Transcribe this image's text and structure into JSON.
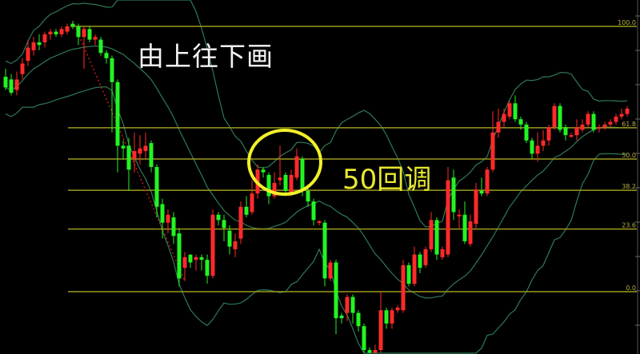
{
  "chart_data": {
    "type": "candlestick",
    "title": "",
    "xlabel": "",
    "ylabel": "",
    "value_units": "fibonacci retracement percent (0.0 = swing low level, 100.0 = swing high level)",
    "ylim": [
      -24,
      104
    ],
    "grid": false,
    "fib_levels": [
      {
        "label": "100.0",
        "value": 100.0
      },
      {
        "label": "61.8",
        "value": 61.8
      },
      {
        "label": "50.0",
        "value": 50.0
      },
      {
        "label": "38.2",
        "value": 38.2
      },
      {
        "label": "23.6",
        "value": 23.6
      },
      {
        "label": "0.0",
        "value": 0.0
      }
    ],
    "candles_ohlc": [
      [
        81,
        77,
        84,
        76
      ],
      [
        80,
        75,
        82,
        74
      ],
      [
        76,
        80,
        83,
        74
      ],
      [
        82,
        86,
        88,
        80
      ],
      [
        87,
        92,
        95,
        85
      ],
      [
        91,
        94,
        96,
        89
      ],
      [
        94,
        93,
        97,
        91
      ],
      [
        94,
        97,
        98,
        92
      ],
      [
        97,
        98,
        99,
        95
      ],
      [
        98,
        97,
        99,
        96
      ],
      [
        97,
        99,
        100,
        96
      ],
      [
        98,
        100,
        101,
        97
      ],
      [
        101,
        100,
        102,
        99
      ],
      [
        100,
        96,
        101,
        93
      ],
      [
        96,
        99,
        100,
        84
      ],
      [
        99,
        95,
        100,
        94
      ],
      [
        95,
        96,
        97,
        93
      ],
      [
        95,
        90,
        96,
        89
      ],
      [
        90,
        88,
        91,
        86
      ],
      [
        88,
        79,
        89,
        60
      ],
      [
        79,
        55,
        80,
        45
      ],
      [
        55,
        54,
        57,
        50
      ],
      [
        55,
        46,
        58,
        38
      ],
      [
        50,
        53,
        60,
        45
      ],
      [
        52,
        54,
        59,
        48
      ],
      [
        53,
        55,
        60,
        50
      ],
      [
        56,
        47,
        57,
        45
      ],
      [
        47,
        32,
        48,
        28
      ],
      [
        33,
        26,
        35,
        20
      ],
      [
        26,
        29,
        31,
        22
      ],
      [
        28,
        21,
        30,
        18
      ],
      [
        22,
        5,
        24,
        2
      ],
      [
        9,
        13,
        15,
        4
      ],
      [
        14,
        11,
        14,
        9
      ],
      [
        12,
        13,
        14,
        8
      ],
      [
        13,
        12,
        14,
        8
      ],
      [
        12,
        6,
        14,
        3
      ],
      [
        6,
        29,
        31,
        5
      ],
      [
        29,
        27,
        30,
        25
      ],
      [
        27,
        24,
        29,
        19
      ],
      [
        23,
        17,
        25,
        14
      ],
      [
        16,
        19,
        22,
        13
      ],
      [
        20,
        32,
        34,
        18
      ],
      [
        32,
        29,
        36,
        28
      ],
      [
        30,
        37,
        42,
        29
      ],
      [
        37,
        46,
        48,
        35
      ],
      [
        46,
        45,
        47,
        43
      ],
      [
        44,
        36,
        45,
        33
      ],
      [
        36,
        41,
        45,
        35
      ],
      [
        42,
        43,
        55,
        40
      ],
      [
        44,
        38,
        45,
        36
      ],
      [
        37,
        44,
        46,
        36
      ],
      [
        43,
        51,
        54,
        42
      ],
      [
        50,
        38,
        51,
        36
      ],
      [
        38,
        34,
        39,
        32
      ],
      [
        34,
        27,
        35,
        25
      ],
      [
        26,
        26.5,
        27,
        25
      ],
      [
        26,
        5,
        27,
        2
      ],
      [
        5,
        11,
        12,
        4
      ],
      [
        11,
        -10,
        12,
        -16
      ],
      [
        -9,
        -10,
        -8,
        -12
      ],
      [
        -8,
        -2,
        -1,
        -11
      ],
      [
        -2,
        -8,
        -1,
        -12
      ],
      [
        -8,
        -13,
        -7,
        -15
      ],
      [
        -13,
        -22,
        -12,
        -23
      ],
      [
        -22,
        -23,
        -21,
        -24
      ],
      [
        -23,
        -22,
        -20,
        -24
      ],
      [
        -22,
        -7,
        0,
        -23
      ],
      [
        -7,
        -12,
        -6,
        -14
      ],
      [
        -12,
        -7,
        -6,
        -14
      ],
      [
        -7,
        -6,
        -5,
        -8
      ],
      [
        -7,
        10,
        12,
        -8
      ],
      [
        10,
        3,
        11,
        2
      ],
      [
        3,
        14,
        17,
        2
      ],
      [
        14,
        9,
        15,
        7
      ],
      [
        10,
        16,
        17,
        9
      ],
      [
        16,
        27,
        30,
        15
      ],
      [
        27,
        14,
        28,
        12
      ],
      [
        13,
        16,
        17,
        12
      ],
      [
        14,
        42,
        47,
        13
      ],
      [
        43,
        30,
        46,
        27
      ],
      [
        29,
        29,
        31,
        24
      ],
      [
        29,
        19,
        34,
        18
      ],
      [
        18,
        26.5,
        29,
        17
      ],
      [
        25.6,
        38.5,
        41,
        24
      ],
      [
        38,
        37,
        43,
        36
      ],
      [
        37,
        46,
        47,
        36
      ],
      [
        46,
        60,
        68,
        45
      ],
      [
        60,
        64,
        69,
        58
      ],
      [
        64,
        67,
        69,
        62
      ],
      [
        66,
        71,
        72,
        65
      ],
      [
        71,
        65,
        74,
        64
      ],
      [
        65,
        63,
        66,
        61
      ],
      [
        63,
        57,
        64,
        56
      ],
      [
        57,
        52,
        58,
        50
      ],
      [
        52,
        55,
        60,
        49
      ],
      [
        55,
        57,
        61,
        53
      ],
      [
        57,
        62,
        63,
        55
      ],
      [
        62,
        70,
        71,
        61
      ],
      [
        70,
        61,
        71,
        60
      ],
      [
        62,
        59,
        63,
        57
      ],
      [
        59,
        59,
        60,
        58
      ],
      [
        59,
        62,
        65,
        57
      ],
      [
        61,
        63,
        65,
        60
      ],
      [
        63,
        67,
        68,
        62
      ],
      [
        67,
        61,
        68,
        60
      ],
      [
        61.5,
        62,
        63,
        60
      ],
      [
        62,
        63,
        64,
        61
      ],
      [
        63,
        64,
        65,
        62
      ],
      [
        64,
        66,
        67,
        63
      ],
      [
        66,
        67,
        69,
        65
      ],
      [
        67,
        69,
        70,
        66
      ]
    ],
    "indicator": "Bollinger Bands (upper, middle, lower)",
    "trendline": {
      "from_candle": 12,
      "to_candle": 32,
      "style": "red dotted"
    },
    "colors": {
      "up": "#ff2a2a",
      "down": "#22f522",
      "fib_line": "#9c9a1e",
      "bands": "#2f7a55",
      "circle": "#f2f02a",
      "trendline": "#c81818"
    }
  },
  "annotations": {
    "top_note": "由上往下画",
    "circle_note": "50回调"
  }
}
